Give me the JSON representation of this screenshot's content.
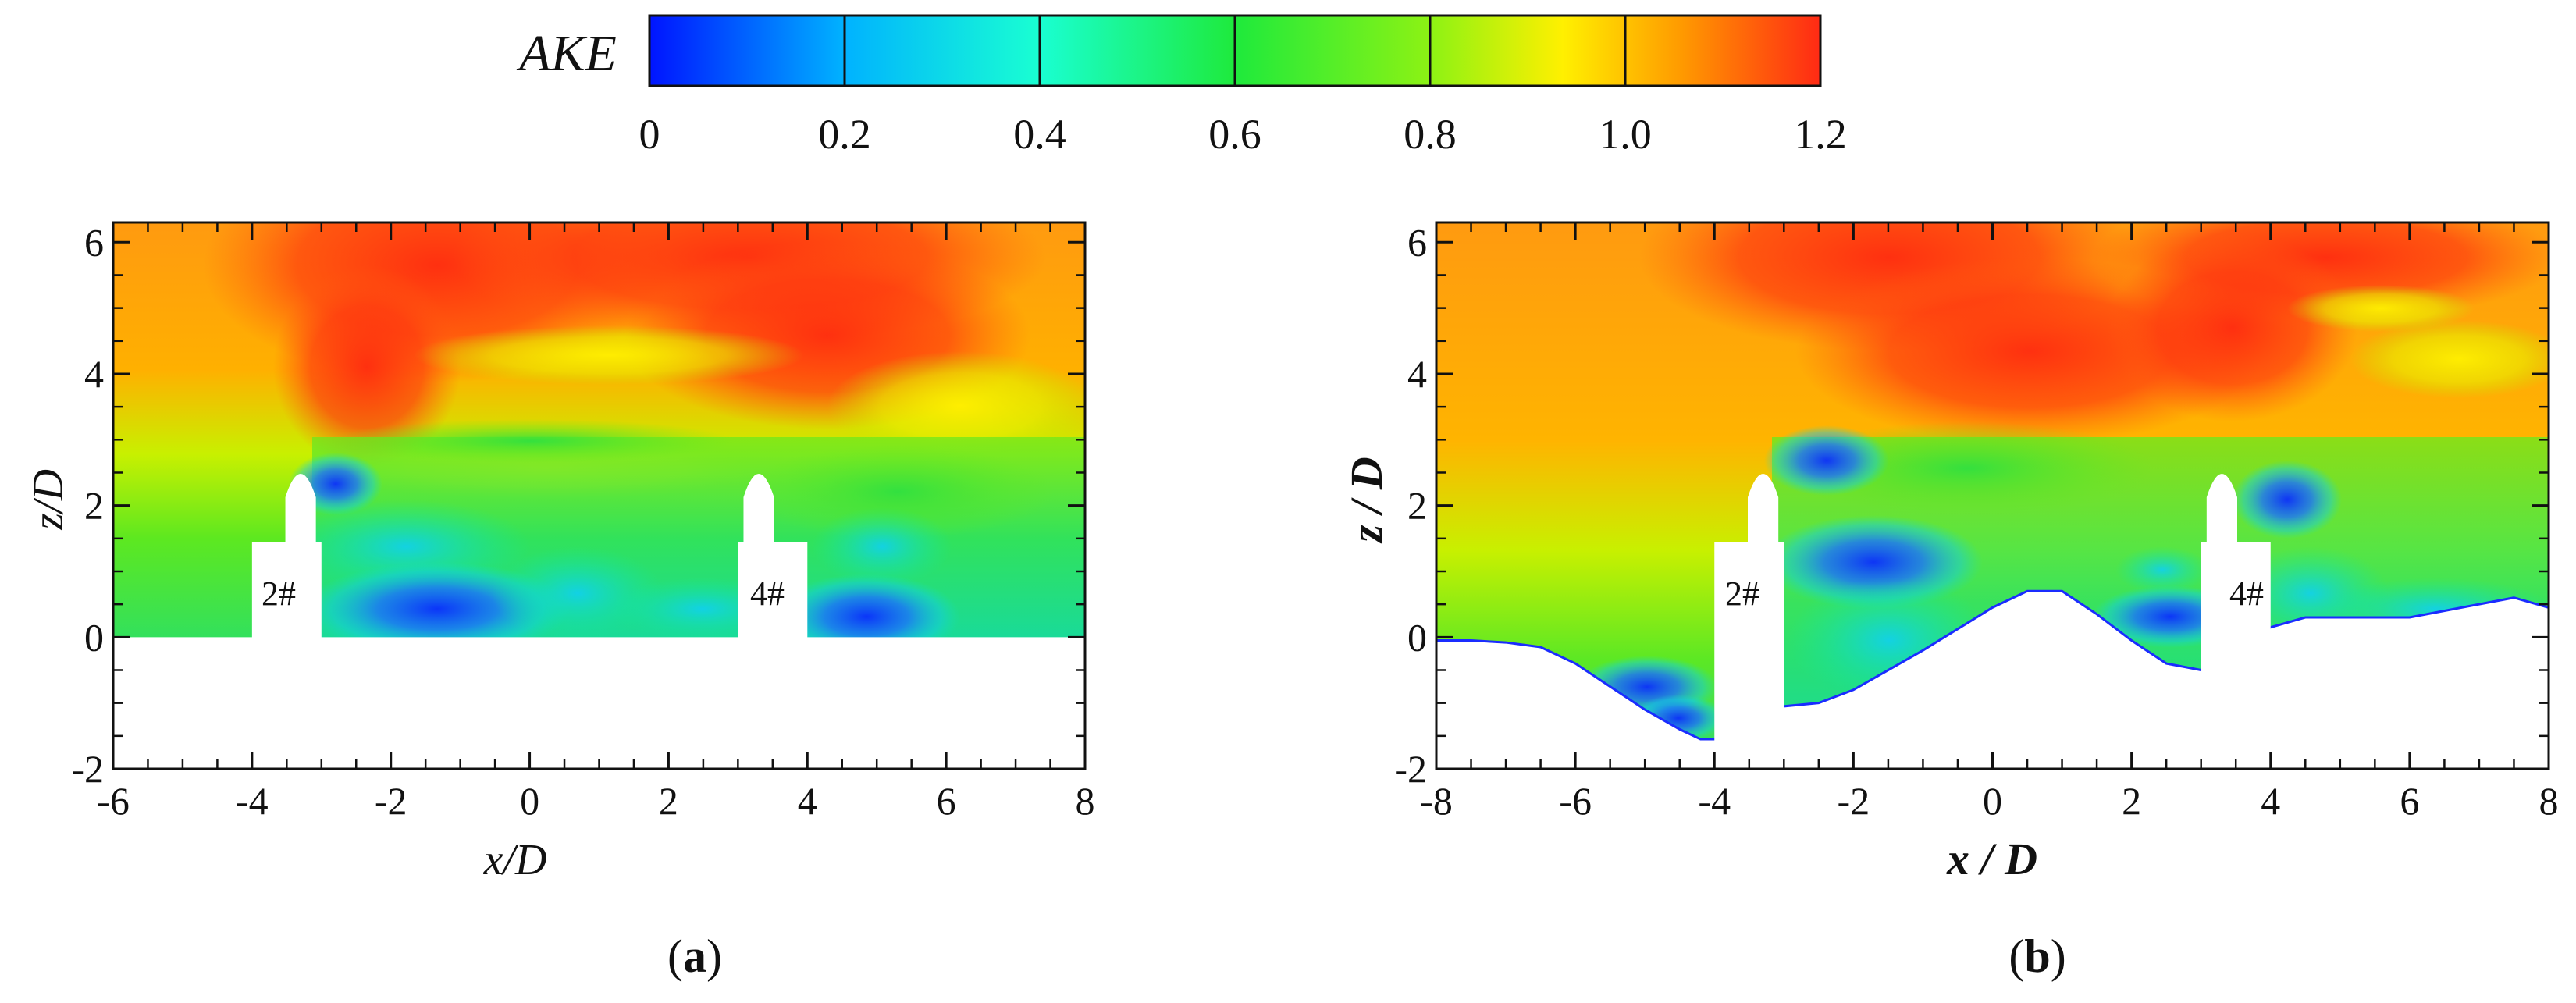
{
  "chart_data": [
    {
      "type": "heatmap",
      "panel": "(a)",
      "panel_tag": "a",
      "xlabel": "x/D",
      "ylabel": "z/D",
      "xlim": [
        -6,
        8
      ],
      "ylim": [
        -2,
        6.3
      ],
      "xticks": [
        -6,
        -4,
        -2,
        0,
        2,
        4,
        6,
        8
      ],
      "yticks": [
        -2,
        0,
        2,
        4,
        6
      ],
      "colorbar": "AKE",
      "bed_profile": {
        "x": [
          -6,
          -4,
          -3,
          3,
          4,
          8
        ],
        "z": [
          0,
          0,
          0,
          0,
          0,
          0
        ]
      },
      "piers": [
        {
          "label": "2#",
          "x_min": -4,
          "x_max": -3,
          "x_center": -3.3,
          "cap_top": 1.45,
          "top": 2.6
        },
        {
          "label": "4#",
          "x_min": 3,
          "x_max": 4,
          "x_center": 3.3,
          "cap_top": 1.45,
          "top": 2.6
        }
      ]
    },
    {
      "type": "heatmap",
      "panel": "(b)",
      "panel_tag": "b",
      "xlabel": "x / D",
      "ylabel": "z / D",
      "xlim": [
        -8,
        8
      ],
      "ylim": [
        -2,
        6.3
      ],
      "xticks": [
        -8,
        -6,
        -4,
        -2,
        0,
        2,
        4,
        6,
        8
      ],
      "yticks": [
        -2,
        0,
        2,
        4,
        6
      ],
      "colorbar": "AKE",
      "bed_profile": {
        "x": [
          -8,
          -7.5,
          -7,
          -6.5,
          -6,
          -5.5,
          -5,
          -4.5,
          -4.2,
          -4,
          -3,
          -2.5,
          -2,
          -1,
          0,
          0.5,
          1,
          1.5,
          2,
          2.5,
          3,
          4,
          4.5,
          5,
          6,
          7,
          7.5,
          8
        ],
        "z": [
          -0.05,
          -0.05,
          -0.08,
          -0.15,
          -0.4,
          -0.75,
          -1.1,
          -1.4,
          -1.55,
          -1.55,
          -1.05,
          -1.0,
          -0.8,
          -0.2,
          0.45,
          0.7,
          0.7,
          0.35,
          -0.05,
          -0.4,
          -0.5,
          0.15,
          0.3,
          0.3,
          0.3,
          0.5,
          0.6,
          0.45
        ]
      },
      "piers": [
        {
          "label": "2#",
          "x_min": -4,
          "x_max": -3,
          "x_center": -3.3,
          "cap_top": 1.45,
          "top": 2.6
        },
        {
          "label": "4#",
          "x_min": 3,
          "x_max": 4,
          "x_center": 3.3,
          "cap_top": 1.45,
          "top": 2.6
        }
      ]
    }
  ],
  "colorbar": {
    "title": "AKE",
    "min": 0,
    "max": 1.2,
    "ticks": [
      "0",
      "0.2",
      "0.4",
      "0.6",
      "0.8",
      "1.0",
      "1.2"
    ],
    "colors": [
      "#0014ff",
      "#00b2ff",
      "#19ffd2",
      "#1eea3c",
      "#8cf214",
      "#fff000",
      "#ff9b00",
      "#ff2a14"
    ]
  }
}
